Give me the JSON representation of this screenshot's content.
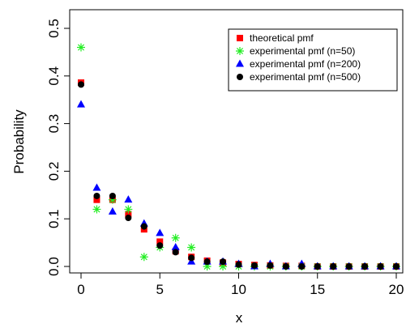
{
  "chart_data": {
    "type": "scatter",
    "title": "",
    "xlabel": "x",
    "ylabel": "Probability",
    "xlim": [
      0,
      20
    ],
    "ylim": [
      0,
      0.5
    ],
    "x_ticks": [
      0,
      5,
      10,
      15,
      20
    ],
    "y_ticks": [
      0.0,
      0.1,
      0.2,
      0.3,
      0.4,
      0.5
    ],
    "y_tick_labels": [
      "0.0",
      "0.1",
      "0.2",
      "0.3",
      "0.4",
      "0.5"
    ],
    "grid": false,
    "legend_position": "top-right",
    "x": [
      0,
      1,
      2,
      3,
      4,
      5,
      6,
      7,
      8,
      9,
      10,
      11,
      12,
      13,
      14,
      15,
      16,
      17,
      18,
      19,
      20
    ],
    "series": [
      {
        "name": "theoretical pmf",
        "marker": "square",
        "color": "#ff0000",
        "values": [
          0.386,
          0.14,
          0.14,
          0.11,
          0.078,
          0.052,
          0.032,
          0.02,
          0.012,
          0.008,
          0.005,
          0.003,
          0.002,
          0.001,
          0.001,
          0.0,
          0.0,
          0.0,
          0.0,
          0.0,
          0.0
        ]
      },
      {
        "name": "experimental pmf (n=50)",
        "marker": "asterisk",
        "color": "#22ee22",
        "values": [
          0.46,
          0.12,
          0.14,
          0.12,
          0.02,
          0.04,
          0.06,
          0.04,
          0.0,
          0.0,
          0.0,
          0.0,
          0.0,
          0.0,
          0.0,
          0.0,
          0.0,
          0.0,
          0.0,
          0.0,
          0.0
        ]
      },
      {
        "name": "experimental pmf (n=200)",
        "marker": "triangle",
        "color": "#0000ff",
        "values": [
          0.34,
          0.165,
          0.115,
          0.14,
          0.09,
          0.07,
          0.04,
          0.01,
          0.01,
          0.01,
          0.005,
          0.0,
          0.005,
          0.0,
          0.005,
          0.0,
          0.0,
          0.0,
          0.0,
          0.0,
          0.0
        ]
      },
      {
        "name": "experimental pmf (n=500)",
        "marker": "circle",
        "color": "#000000",
        "values": [
          0.382,
          0.148,
          0.148,
          0.102,
          0.084,
          0.044,
          0.03,
          0.018,
          0.01,
          0.01,
          0.004,
          0.002,
          0.002,
          0.0,
          0.0,
          0.0,
          0.0,
          0.0,
          0.0,
          0.0,
          0.0
        ]
      }
    ]
  }
}
